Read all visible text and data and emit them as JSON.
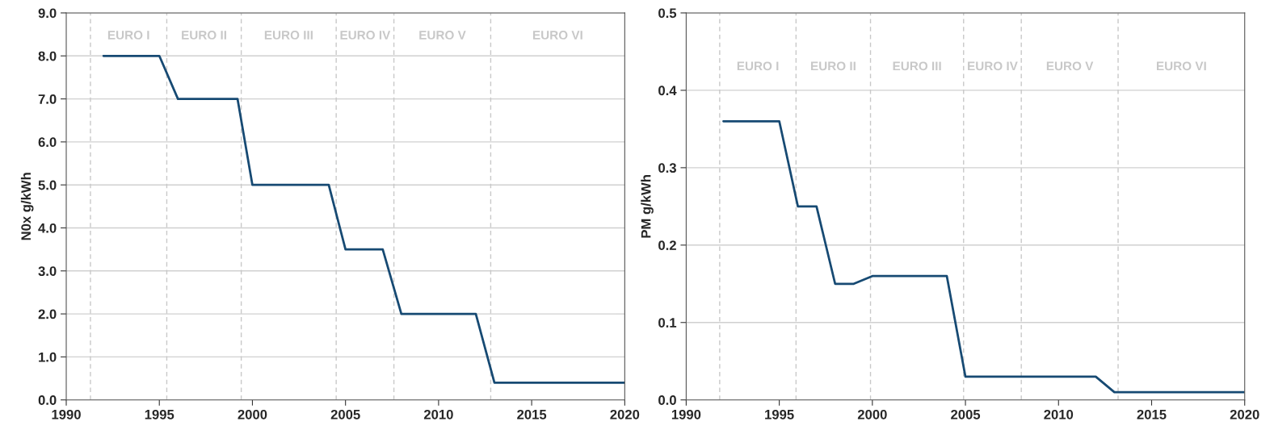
{
  "chart_data": [
    {
      "type": "line",
      "ylabel": "N0x g/kWh",
      "x": [
        1992,
        1995,
        1996,
        1999.2,
        2000,
        2004.1,
        2005,
        2007,
        2008,
        2012,
        2013,
        2020
      ],
      "series": [
        {
          "color": "#174a73",
          "values": [
            8,
            8,
            7,
            7,
            5,
            5,
            3.5,
            3.5,
            2,
            2,
            0.4,
            0.4
          ]
        }
      ],
      "xlim": [
        1990,
        2020
      ],
      "xticks": [
        1990,
        1995,
        2000,
        2005,
        2010,
        2015,
        2020
      ],
      "ylim": [
        0,
        9
      ],
      "yticks": [
        {
          "value": 0,
          "label": "0.0"
        },
        {
          "value": 1,
          "label": "1.0"
        },
        {
          "value": 2,
          "label": "2.0"
        },
        {
          "value": 3,
          "label": "3.0"
        },
        {
          "value": 4,
          "label": "4.0"
        },
        {
          "value": 5,
          "label": "5.0"
        },
        {
          "value": 6,
          "label": "6.0"
        },
        {
          "value": 7,
          "label": "7.0"
        },
        {
          "value": 8,
          "label": "8.0"
        },
        {
          "value": 9,
          "label": "9.0"
        }
      ],
      "grid": "y",
      "ref_lines": [
        {
          "axis": "x",
          "value": 1991.3,
          "color": "#c8c8c8",
          "line_style": "dashed"
        },
        {
          "axis": "x",
          "value": 1995.4,
          "color": "#c8c8c8",
          "line_style": "dashed"
        },
        {
          "axis": "x",
          "value": 1999.4,
          "color": "#c8c8c8",
          "line_style": "dashed"
        },
        {
          "axis": "x",
          "value": 2004.5,
          "color": "#c8c8c8",
          "line_style": "dashed"
        },
        {
          "axis": "x",
          "value": 2007.6,
          "color": "#c8c8c8",
          "line_style": "dashed"
        },
        {
          "axis": "x",
          "value": 2012.8,
          "color": "#c8c8c8",
          "line_style": "dashed"
        }
      ],
      "annotations": [
        "EURO I",
        "EURO II",
        "EURO III",
        "EURO IV",
        "EURO V",
        "EURO VI"
      ]
    },
    {
      "type": "line",
      "ylabel": "PM g/kWh",
      "x": [
        1992,
        1995,
        1996,
        1997,
        1998,
        1999,
        2000,
        2004,
        2005,
        2012,
        2013,
        2020
      ],
      "series": [
        {
          "color": "#174a73",
          "values": [
            0.36,
            0.36,
            0.25,
            0.25,
            0.15,
            0.15,
            0.16,
            0.16,
            0.03,
            0.03,
            0.01,
            0.01
          ]
        }
      ],
      "xlim": [
        1990,
        2020
      ],
      "xticks": [
        1990,
        1995,
        2000,
        2005,
        2010,
        2015,
        2020
      ],
      "ylim": [
        0,
        0.5
      ],
      "yticks": [
        {
          "value": 0,
          "label": "0.0"
        },
        0.1,
        0.2,
        0.3,
        0.4,
        0.5
      ],
      "grid": "y",
      "ref_lines": [
        {
          "axis": "x",
          "value": 1991.8,
          "color": "#c8c8c8",
          "line_style": "dashed"
        },
        {
          "axis": "x",
          "value": 1995.9,
          "color": "#c8c8c8",
          "line_style": "dashed"
        },
        {
          "axis": "x",
          "value": 1999.9,
          "color": "#c8c8c8",
          "line_style": "dashed"
        },
        {
          "axis": "x",
          "value": 2004.9,
          "color": "#c8c8c8",
          "line_style": "dashed"
        },
        {
          "axis": "x",
          "value": 2008,
          "color": "#c8c8c8",
          "line_style": "dashed"
        },
        {
          "axis": "x",
          "value": 2013.2,
          "color": "#c8c8c8",
          "line_style": "dashed"
        }
      ],
      "annotations": [
        "EURO I",
        "EURO II",
        "EURO III",
        "EURO IV",
        "EURO V",
        "EURO VI"
      ]
    }
  ]
}
